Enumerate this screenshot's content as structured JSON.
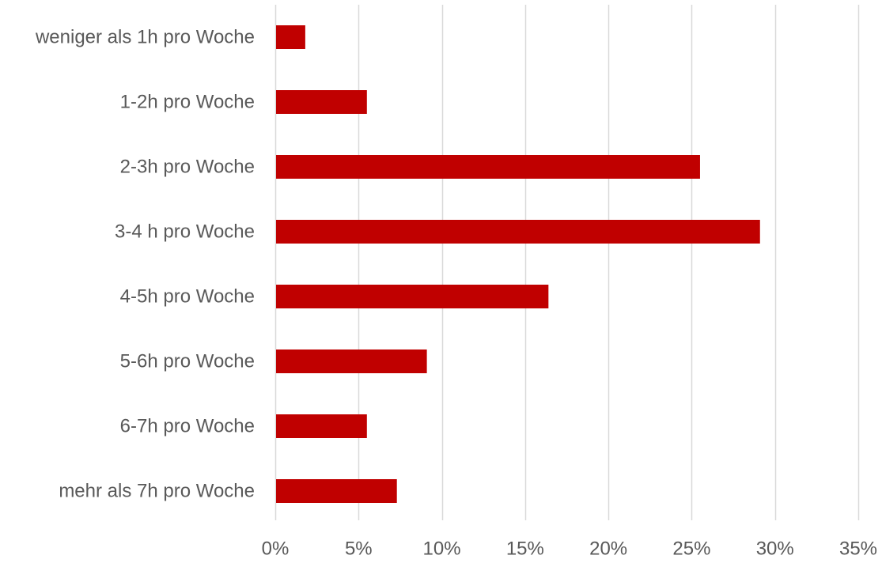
{
  "chart_data": {
    "type": "bar",
    "orientation": "horizontal",
    "categories": [
      "weniger als 1h pro Woche",
      "1-2h pro Woche",
      "2-3h pro Woche",
      "3-4 h pro Woche",
      "4-5h pro Woche",
      "5-6h pro Woche",
      "6-7h pro Woche",
      "mehr als 7h pro Woche"
    ],
    "values": [
      1.8,
      5.5,
      25.5,
      29.1,
      16.4,
      9.1,
      5.5,
      7.3
    ],
    "xlim": [
      0,
      35
    ],
    "xticks": [
      0,
      5,
      10,
      15,
      20,
      25,
      30,
      35
    ],
    "xtick_labels": [
      "0%",
      "5%",
      "10%",
      "15%",
      "20%",
      "25%",
      "30%",
      "35%"
    ],
    "grid": "vertical",
    "legend": "none",
    "bar_color": "#c00000",
    "grid_color": "#d9d9d9",
    "text_color": "#595959"
  }
}
